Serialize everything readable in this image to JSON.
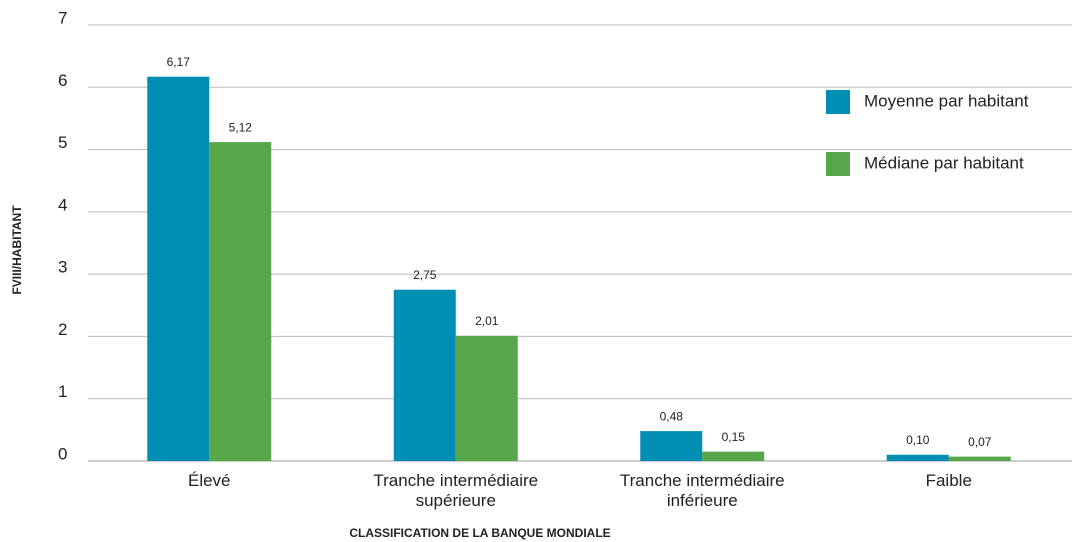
{
  "chart_data": {
    "type": "bar",
    "x_label": "CLASSIFICATION DE LA BANQUE MONDIALE",
    "y_label": "FVIII/HABITANT",
    "categories": [
      "Élevé",
      "Tranche intermédiaire supérieure",
      "Tranche intermédiaire inférieure",
      "Faible"
    ],
    "series": [
      {
        "name": "Moyenne par habitant",
        "color": "#008fb3",
        "values": [
          6.17,
          2.75,
          0.48,
          0.1
        ],
        "value_labels": [
          "6,17",
          "2,75",
          "0,48",
          "0,10"
        ]
      },
      {
        "name": "Médiane par habitant",
        "color": "#57a64a",
        "values": [
          5.12,
          2.01,
          0.15,
          0.07
        ],
        "value_labels": [
          "5,12",
          "2,01",
          "0,15",
          "0,07"
        ]
      }
    ],
    "ylim": [
      0,
      7
    ],
    "yticks": [
      0,
      1,
      2,
      3,
      4,
      5,
      6,
      7
    ],
    "grid": true,
    "legend": "upper right"
  }
}
